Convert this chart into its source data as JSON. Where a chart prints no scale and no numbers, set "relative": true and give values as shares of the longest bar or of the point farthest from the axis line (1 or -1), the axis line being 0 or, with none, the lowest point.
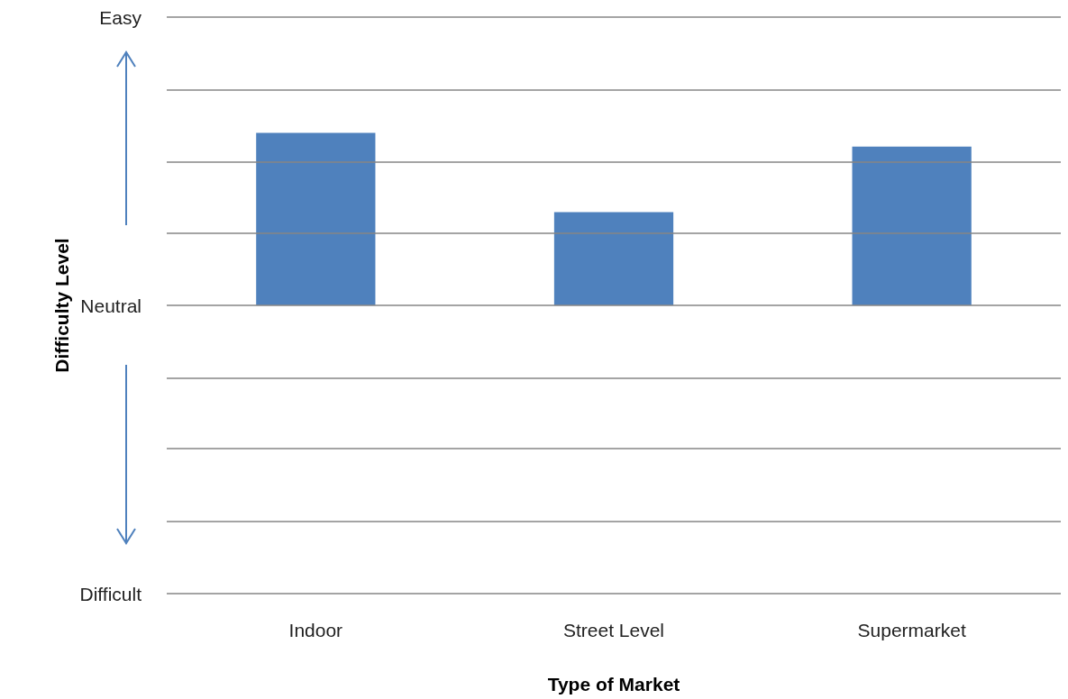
{
  "chart_data": {
    "type": "bar",
    "categories": [
      "Indoor",
      "Street Level",
      "Supermarket"
    ],
    "values": [
      1,
      0.54,
      0.92
    ],
    "relative": true,
    "color": "#4f81bd",
    "xlabel": "Type of Market",
    "ylabel": "Difficulty Level",
    "ref_lines": [
      {
        "axis": "y",
        "value": 1.67,
        "label": "Easy",
        "color": "#868686"
      },
      {
        "axis": "y",
        "value": 1.25,
        "label": null,
        "color": "#868686"
      },
      {
        "axis": "y",
        "value": 0.83,
        "label": null,
        "color": "#868686"
      },
      {
        "axis": "y",
        "value": 0.42,
        "label": null,
        "color": "#868686"
      },
      {
        "axis": "y",
        "value": 0,
        "label": "Neutral",
        "color": "#868686"
      },
      {
        "axis": "y",
        "value": -0.42,
        "label": null,
        "color": "#868686"
      },
      {
        "axis": "y",
        "value": -0.83,
        "label": null,
        "color": "#868686"
      },
      {
        "axis": "y",
        "value": -1.25,
        "label": null,
        "color": "#868686"
      },
      {
        "axis": "y",
        "value": -1.67,
        "label": "Difficult",
        "color": "#868686"
      }
    ]
  }
}
